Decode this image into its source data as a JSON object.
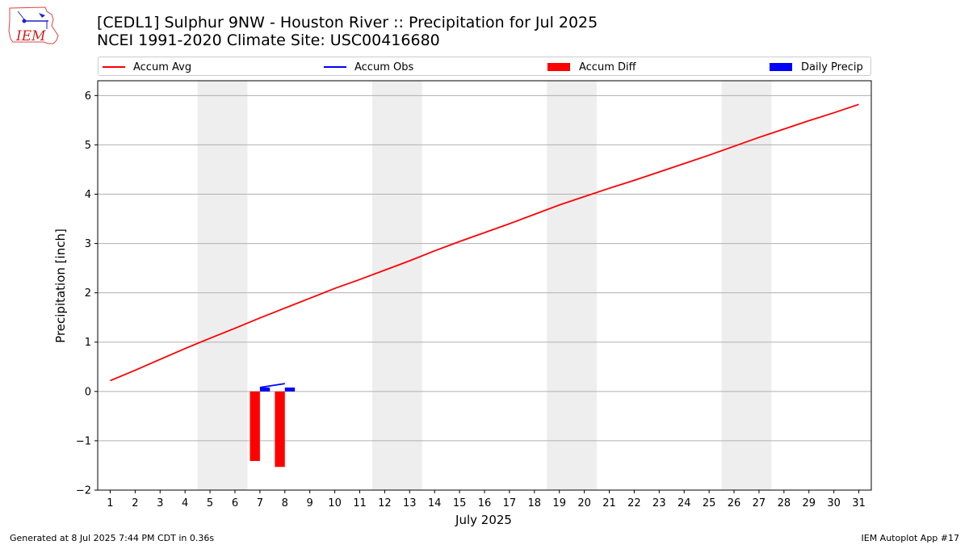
{
  "header": {
    "logo_text": "IEM",
    "title_line1": "[CEDL1] Sulphur 9NW - Houston River :: Precipitation for Jul 2025",
    "title_line2": "NCEI 1991-2020 Climate Site: USC00416680"
  },
  "legend": {
    "items": [
      {
        "label": "Accum Avg",
        "kind": "line",
        "color": "#ff0000"
      },
      {
        "label": "Accum Obs",
        "kind": "line",
        "color": "#0000ff"
      },
      {
        "label": "Accum Diff",
        "kind": "patch",
        "color": "#ff0000"
      },
      {
        "label": "Daily Precip",
        "kind": "patch",
        "color": "#0000ff"
      }
    ]
  },
  "footer": {
    "generated": "Generated at 8 Jul 2025 7:44 PM CDT in 0.36s",
    "app": "IEM Autoplot App #17"
  },
  "chart_data": {
    "type": "line",
    "xlabel": "July 2025",
    "ylabel": "Precipitation [inch]",
    "xlim": [
      0.5,
      31.5
    ],
    "ylim": [
      -2.0,
      6.3
    ],
    "x_ticks": [
      1,
      2,
      3,
      4,
      5,
      6,
      7,
      8,
      9,
      10,
      11,
      12,
      13,
      14,
      15,
      16,
      17,
      18,
      19,
      20,
      21,
      22,
      23,
      24,
      25,
      26,
      27,
      28,
      29,
      30,
      31
    ],
    "y_ticks": [
      -2,
      -1,
      0,
      1,
      2,
      3,
      4,
      5,
      6
    ],
    "y_tick_labels": [
      "−2",
      "−1",
      "0",
      "1",
      "2",
      "3",
      "4",
      "5",
      "6"
    ],
    "grid": "horizontal",
    "legend_position": "top",
    "weekend_bands": [
      [
        4.5,
        6.5
      ],
      [
        11.5,
        13.5
      ],
      [
        18.5,
        20.5
      ],
      [
        25.5,
        27.5
      ]
    ],
    "colors": {
      "avg": "#ff0000",
      "obs": "#0000ff",
      "diff": "#ff0000",
      "daily": "#0000ff",
      "band": "#eeeeee"
    },
    "accum_avg": {
      "x": [
        1,
        2,
        3,
        4,
        5,
        6,
        7,
        8,
        9,
        10,
        11,
        12,
        13,
        14,
        15,
        16,
        17,
        18,
        19,
        20,
        21,
        22,
        23,
        24,
        25,
        26,
        27,
        28,
        29,
        30,
        31
      ],
      "values": [
        0.22,
        0.43,
        0.65,
        0.87,
        1.08,
        1.28,
        1.49,
        1.69,
        1.89,
        2.09,
        2.27,
        2.46,
        2.65,
        2.85,
        3.04,
        3.22,
        3.4,
        3.59,
        3.78,
        3.95,
        4.12,
        4.28,
        4.45,
        4.62,
        4.79,
        4.97,
        5.15,
        5.32,
        5.49,
        5.65,
        5.82
      ]
    },
    "accum_obs": {
      "x": [
        7,
        8
      ],
      "values": [
        0.08,
        0.16
      ]
    },
    "accum_diff": {
      "x": [
        7,
        8
      ],
      "values": [
        -1.41,
        -1.53
      ]
    },
    "daily_precip": {
      "x": [
        7,
        8
      ],
      "values": [
        0.08,
        0.08
      ]
    }
  }
}
